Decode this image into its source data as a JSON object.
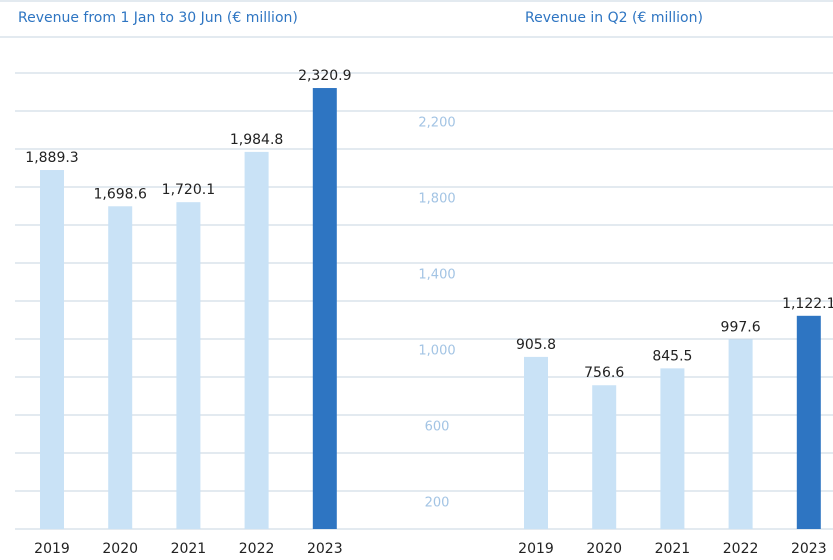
{
  "chart_data": [
    {
      "type": "bar",
      "title": "Revenue from 1 Jan to 30 Jun (€ million)",
      "categories": [
        "2019",
        "2020",
        "2021",
        "2022",
        "2023"
      ],
      "values": [
        1889.3,
        1698.6,
        1720.1,
        1984.8,
        2320.9
      ],
      "value_labels": [
        "1,889.3",
        "1,698.6",
        "1,720.1",
        "1,984.8",
        "2,320.9"
      ],
      "colors": [
        "#c9e2f6",
        "#c9e2f6",
        "#c9e2f6",
        "#c9e2f6",
        "#2e75c2"
      ],
      "ylim": [
        0,
        2600
      ],
      "yticks": [
        200,
        600,
        {
          "value": 1000,
          "label": "1,000"
        },
        {
          "value": 1400,
          "label": "1,400"
        },
        {
          "value": 1800,
          "label": "1,800"
        },
        {
          "value": 2200,
          "label": "2,200"
        }
      ],
      "grid": true
    },
    {
      "type": "bar",
      "title": "Revenue in Q2 (€ million)",
      "categories": [
        "2019",
        "2020",
        "2021",
        "2022",
        "2023"
      ],
      "values": [
        905.8,
        756.6,
        845.5,
        997.6,
        1122.1
      ],
      "value_labels": [
        "905.8",
        "756.6",
        "845.5",
        "997.6",
        "1,122.1"
      ],
      "colors": [
        "#c9e2f6",
        "#c9e2f6",
        "#c9e2f6",
        "#c9e2f6",
        "#2e75c2"
      ],
      "ylim": [
        0,
        2600
      ]
    }
  ]
}
